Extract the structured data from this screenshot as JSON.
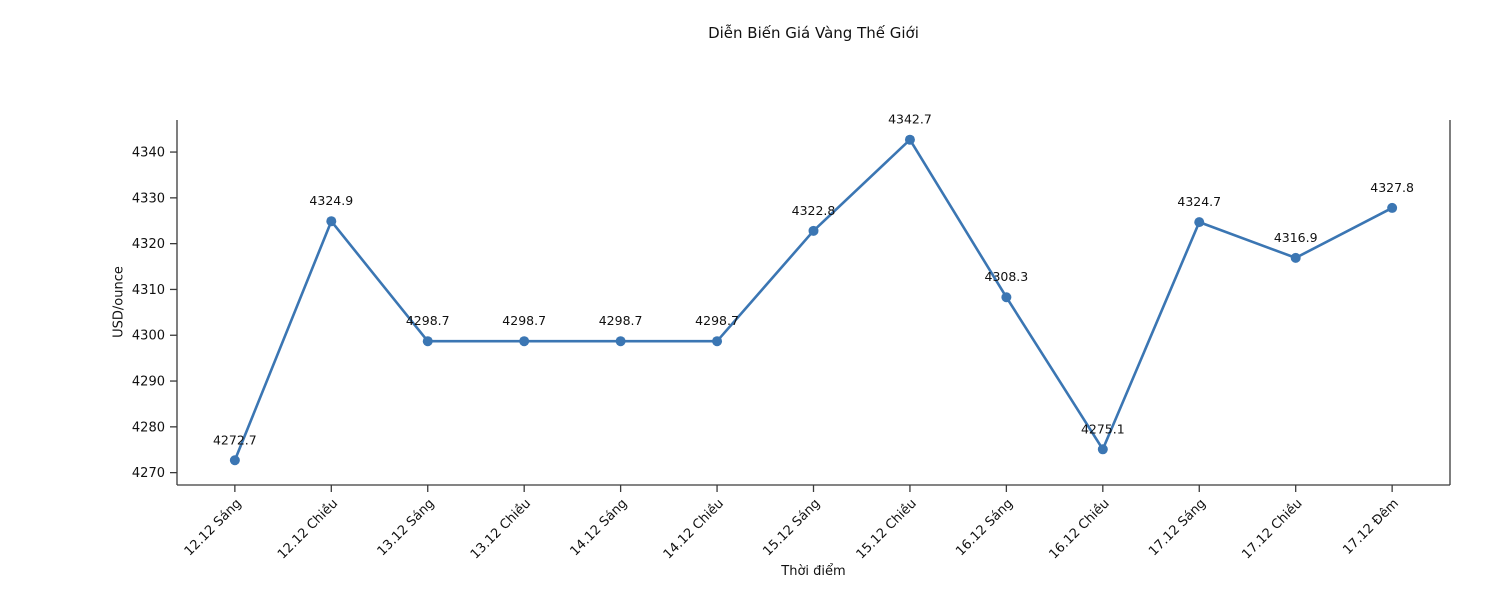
{
  "page": {
    "background": "#ffffff"
  },
  "chart": {
    "title": "Diễn Biến Giá Vàng Thế Giới",
    "xlabel": "Thời điểm",
    "ylabel": "USD/ounce"
  },
  "chart_data": {
    "type": "line",
    "title": "Diễn Biến Giá Vàng Thế Giới",
    "xlabel": "Thời điểm",
    "ylabel": "USD/ounce",
    "categories": [
      "12.12 Sáng",
      "12.12 Chiều",
      "13.12 Sáng",
      "13.12 Chiều",
      "14.12 Sáng",
      "14.12 Chiều",
      "15.12 Sáng",
      "15.12 Chiều",
      "16.12 Sáng",
      "16.12 Chiều",
      "17.12 Sáng",
      "17.12 Chiều",
      "17.12 Đêm"
    ],
    "values": [
      4272.7,
      4324.9,
      4298.7,
      4298.7,
      4298.7,
      4298.7,
      4322.8,
      4342.7,
      4308.3,
      4275.1,
      4324.7,
      4316.9,
      4327.8
    ],
    "point_labels": [
      "4272.7",
      "4324.9",
      "4298.7",
      "4298.7",
      "4298.7",
      "4298.7",
      "4322.8",
      "4342.7",
      "4308.3",
      "4275.1",
      "4324.7",
      "4316.9",
      "4327.8"
    ],
    "yticks": [
      4270,
      4280,
      4290,
      4300,
      4310,
      4320,
      4330,
      4340
    ],
    "ylim": [
      4267.3,
      4347.0
    ],
    "xtick_rotation": 45,
    "grid": false,
    "legend": "none",
    "marker": "circle",
    "line_color": "#3b76b3",
    "text_color": "#111111",
    "spine_color": "#3a3a3a",
    "spines": {
      "top": false,
      "right": true,
      "left": true,
      "bottom": true
    }
  }
}
